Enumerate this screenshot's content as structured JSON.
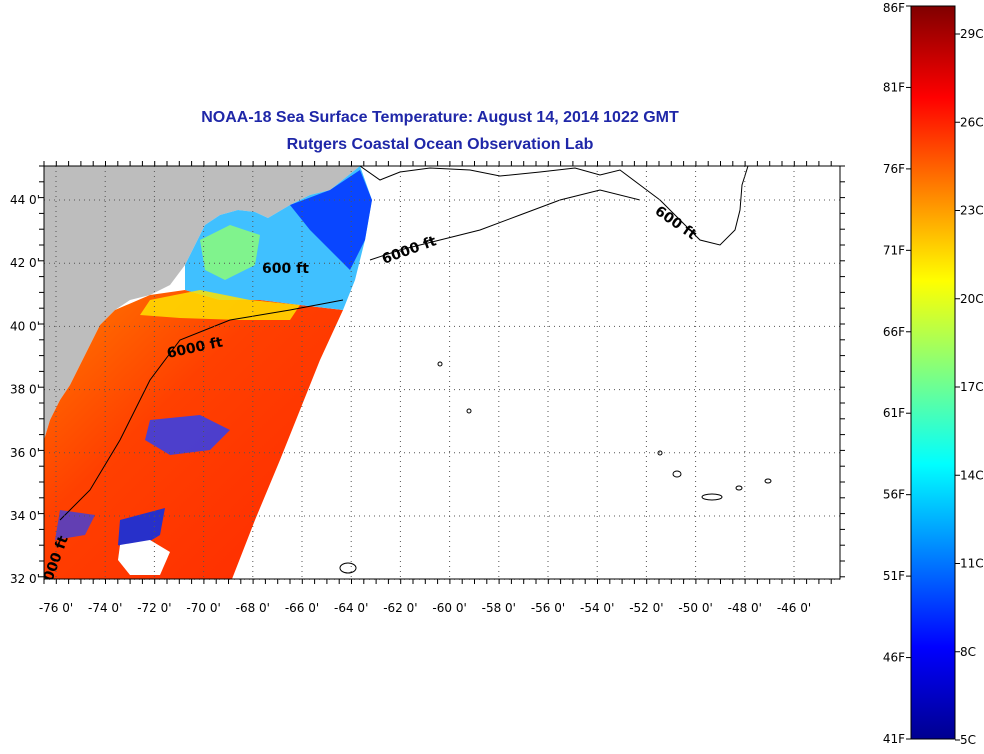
{
  "title": {
    "line1": "NOAA-18 Sea Surface Temperature:  August 14, 2014 1022 GMT",
    "line2": "Rutgers Coastal Ocean Observation Lab"
  },
  "map": {
    "lon_labels": [
      "-76 0'",
      "-74 0'",
      "-72 0'",
      "-70 0'",
      "-68 0'",
      "-66 0'",
      "-64 0'",
      "-62 0'",
      "-60 0'",
      "-58 0'",
      "-56 0'",
      "-54 0'",
      "-52 0'",
      "-50 0'",
      "-48 0'",
      "-46 0'"
    ],
    "lat_labels": [
      "44 0'",
      "42 0'",
      "40 0'",
      "38 0'",
      "36 0'",
      "34 0'",
      "32 0'"
    ],
    "contour_labels": [
      "600 ft",
      "6000 ft",
      "6000 ft",
      "600 ft",
      "000 ft"
    ],
    "colors": {
      "land": "#bdbdbd",
      "grid": "#555555",
      "title": "#1f27a8"
    }
  },
  "colorbar": {
    "fahrenheit": [
      "86F",
      "81F",
      "76F",
      "71F",
      "66F",
      "61F",
      "56F",
      "51F",
      "46F",
      "41F"
    ],
    "celsius": [
      "29C",
      "26C",
      "23C",
      "20C",
      "17C",
      "14C",
      "11C",
      "8C",
      "5C"
    ],
    "gradient": [
      "#00008f",
      "#0000ff",
      "#0080ff",
      "#00ffff",
      "#80ff80",
      "#ffff00",
      "#ff8000",
      "#ff0000",
      "#800000"
    ]
  }
}
